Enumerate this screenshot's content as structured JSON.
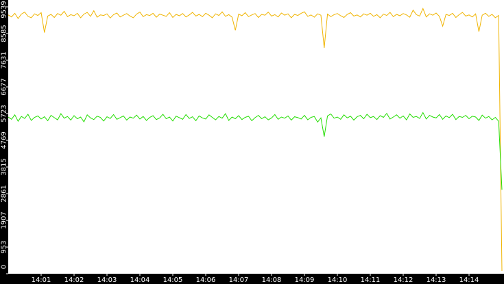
{
  "chart_data": {
    "type": "line",
    "xlim": [
      0,
      15
    ],
    "xticks": [
      {
        "value": 1,
        "label": "14:01"
      },
      {
        "value": 2,
        "label": "14:02"
      },
      {
        "value": 3,
        "label": "14:03"
      },
      {
        "value": 4,
        "label": "14:04"
      },
      {
        "value": 5,
        "label": "14:05"
      },
      {
        "value": 6,
        "label": "14:06"
      },
      {
        "value": 7,
        "label": "14:07"
      },
      {
        "value": 8,
        "label": "14:08"
      },
      {
        "value": 9,
        "label": "14:09"
      },
      {
        "value": 10,
        "label": "14:10"
      },
      {
        "value": 11,
        "label": "14:11"
      },
      {
        "value": 12,
        "label": "14:12"
      },
      {
        "value": 13,
        "label": "14:13"
      },
      {
        "value": 14,
        "label": "14:14"
      }
    ],
    "ylim": [
      0,
      9539
    ],
    "yticks": [
      0,
      953,
      1907,
      2861,
      3815,
      4769,
      5723,
      6677,
      7631,
      8585,
      9539
    ],
    "series": [
      {
        "color": "#f0b400",
        "values": [
          9250,
          9180,
          9310,
          9120,
          9280,
          9350,
          9200,
          9150,
          9290,
          9230,
          9330,
          8620,
          9210,
          9270,
          9160,
          9300,
          9240,
          9380,
          9190,
          9260,
          9220,
          9310,
          9150,
          9280,
          9340,
          9200,
          9400,
          9170,
          9250,
          9230,
          9290,
          9140,
          9260,
          9320,
          9180,
          9240,
          9300,
          9210,
          9150,
          9280,
          9350,
          9190,
          9260,
          9230,
          9310,
          9170,
          9280,
          9240,
          9200,
          9330,
          9160,
          9270,
          9220,
          9300,
          9180,
          9250,
          9340,
          9210,
          9270,
          9190,
          9310,
          9240,
          9150,
          9290,
          9230,
          9360,
          9200,
          9260,
          9170,
          8700,
          9280,
          9220,
          9330,
          9190,
          9250,
          9300,
          9160,
          9270,
          9240,
          9350,
          9210,
          9260,
          9180,
          9320,
          9240,
          9290,
          9150,
          9270,
          9230,
          9310,
          9360,
          9200,
          9250,
          9170,
          9290,
          9240,
          8070,
          9280,
          9190,
          9260,
          9300,
          9220,
          9160,
          9270,
          9330,
          9210,
          9250,
          9180,
          9290,
          9240,
          9310,
          9200,
          9260,
          9150,
          9280,
          9230,
          9340,
          9190,
          9270,
          9220,
          9300,
          9250,
          9170,
          9420,
          9260,
          9210,
          9480,
          9180,
          9290,
          9240,
          9320,
          9200,
          8850,
          9270,
          9230,
          9310,
          9160,
          9260,
          9340,
          9210,
          9250,
          9180,
          9290,
          8650,
          9240,
          9310,
          9200,
          9270,
          9150,
          9230,
          100
        ]
      },
      {
        "color": "#22dd00",
        "values": [
          5600,
          5520,
          5680,
          5450,
          5620,
          5550,
          5700,
          5480,
          5590,
          5640,
          5530,
          5610,
          5470,
          5660,
          5580,
          5500,
          5720,
          5560,
          5620,
          5490,
          5650,
          5540,
          5600,
          5430,
          5680,
          5570,
          5510,
          5630,
          5590,
          5460,
          5610,
          5550,
          5690,
          5520,
          5580,
          5640,
          5490,
          5600,
          5560,
          5670,
          5530,
          5620,
          5480,
          5590,
          5650,
          5510,
          5570,
          5700,
          5540,
          5600,
          5460,
          5630,
          5580,
          5520,
          5690,
          5550,
          5610,
          5470,
          5640,
          5570,
          5530,
          5680,
          5590,
          5500,
          5620,
          5560,
          5720,
          5480,
          5600,
          5540,
          5650,
          5510,
          5590,
          5630,
          5470,
          5580,
          5660,
          5540,
          5610,
          5500,
          5570,
          5690,
          5520,
          5600,
          5560,
          5640,
          5490,
          5610,
          5580,
          5530,
          5660,
          5500,
          5590,
          5620,
          5420,
          5570,
          4900,
          5640,
          5710,
          5560,
          5600,
          5520,
          5680,
          5570,
          5630,
          5490,
          5610,
          5660,
          5540,
          5700,
          5580,
          5620,
          5510,
          5650,
          5590,
          5730,
          5530,
          5600,
          5680,
          5560,
          5640,
          5500,
          5710,
          5590,
          5620,
          5550,
          5760,
          5530,
          5660,
          5600,
          5570,
          5690,
          5520,
          5640,
          5580,
          5700,
          5510,
          5620,
          5590,
          5660,
          5540,
          5630,
          5600,
          5480,
          5670,
          5560,
          5620,
          5500,
          5590,
          5450,
          3000
        ]
      }
    ]
  }
}
